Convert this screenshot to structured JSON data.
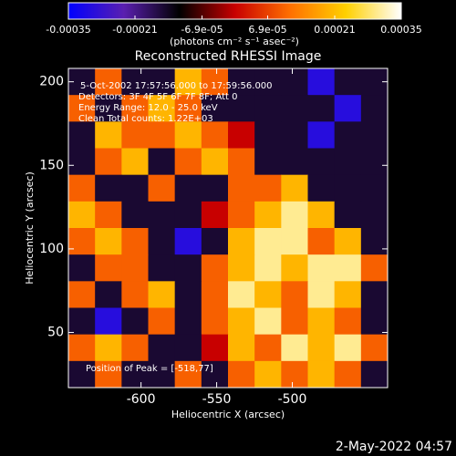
{
  "chart_data": {
    "type": "heatmap",
    "title": "Reconstructed RHESSI Image",
    "x_label": "Heliocentric X (arcsec)",
    "y_label": "Heliocentric Y (arcsec)",
    "colorbar_label": "(photons cm⁻² s⁻¹ asec⁻²)",
    "annotations": [
      "5-Oct-2002 17:57:56.000 to 17:59:56.000",
      "Detectors: 3F 4F 5F 6F 7F 8F; Att 0",
      "Energy Range: 12.0 - 25.0 keV",
      "Clean    Total counts: 1.22E+03"
    ],
    "peak_label": "Position of Peak = [-518,77]",
    "footer": "2-May-2022 04:57",
    "xlim": [
      -648,
      -437
    ],
    "ylim": [
      17,
      208
    ],
    "xticks": [
      -600,
      -550,
      -500
    ],
    "yticks": [
      50,
      100,
      150,
      200
    ],
    "zlim": [
      -0.00035,
      0.00035
    ],
    "zticks": [
      {
        "value": -0.00035,
        "label": "-0.00035"
      },
      {
        "value": -0.00021,
        "label": "-0.00021"
      },
      {
        "value": -6.9e-05,
        "label": "-6.9e-05"
      },
      {
        "value": 6.9e-05,
        "label": "6.9e-05"
      },
      {
        "value": 0.00021,
        "label": "0.00021"
      },
      {
        "value": 0.00035,
        "label": "0.00035"
      }
    ],
    "colorscale": [
      "#0000ff",
      "#5a1fb0",
      "#000000",
      "#c80000",
      "#ff7000",
      "#ffd000",
      "#ffffff"
    ],
    "z": [
      [
        -0.00015,
        0.0001,
        -0.00015,
        -0.00015,
        0.0002,
        0.0001,
        -0.00015,
        -0.00015,
        -0.00015,
        -0.0003,
        -0.00015,
        -0.00015
      ],
      [
        0.0001,
        -0.00015,
        0.0001,
        0.0002,
        0.0001,
        -0.00015,
        -0.00015,
        -0.00015,
        -0.00015,
        -0.00015,
        -0.0003,
        -0.00015
      ],
      [
        -0.00015,
        0.0002,
        0.0001,
        0.0001,
        0.0002,
        0.0001,
        0,
        -0.00015,
        -0.00015,
        -0.0003,
        -0.00015,
        -0.00015
      ],
      [
        -0.00015,
        0.0001,
        0.0002,
        -0.00015,
        0.0001,
        0.0002,
        0.0001,
        -0.00015,
        -0.00015,
        -0.00015,
        -0.00015,
        -0.00015
      ],
      [
        0.0001,
        -0.00015,
        -0.00015,
        0.0001,
        -0.00015,
        -0.00015,
        0.0001,
        0.0001,
        0.0002,
        -0.00015,
        -0.00015,
        -0.00015
      ],
      [
        0.0002,
        0.0001,
        -0.00015,
        -0.00015,
        -0.00015,
        0,
        0.0001,
        0.0002,
        0.0003,
        0.0002,
        -0.00015,
        -0.00015
      ],
      [
        0.0001,
        0.0002,
        0.0001,
        -0.00015,
        -0.0003,
        -0.00015,
        0.0002,
        0.0003,
        0.0003,
        0.0001,
        0.0002,
        -0.00015
      ],
      [
        -0.00015,
        0.0001,
        0.0001,
        -0.00015,
        -0.00015,
        0.0001,
        0.0002,
        0.0003,
        0.0002,
        0.0003,
        0.0003,
        0.0001
      ],
      [
        0.0001,
        -0.00015,
        0.0001,
        0.0002,
        -0.00015,
        0.0001,
        0.0003,
        0.0002,
        0.0001,
        0.0003,
        0.0002,
        -0.00015
      ],
      [
        -0.00015,
        -0.0003,
        -0.00015,
        0.0001,
        -0.00015,
        0.0001,
        0.0002,
        0.0003,
        0.0001,
        0.0002,
        0.0001,
        -0.00015
      ],
      [
        0.0001,
        0.0002,
        0.0001,
        -0.00015,
        -0.00015,
        0,
        0.0002,
        0.0001,
        0.0003,
        0.0002,
        0.0003,
        0.0001
      ],
      [
        -0.00015,
        0.0001,
        -0.00015,
        -0.00015,
        0.0001,
        -0.00015,
        0.0001,
        0.0002,
        0.0001,
        0.0002,
        0.0001,
        -0.00015
      ]
    ]
  }
}
